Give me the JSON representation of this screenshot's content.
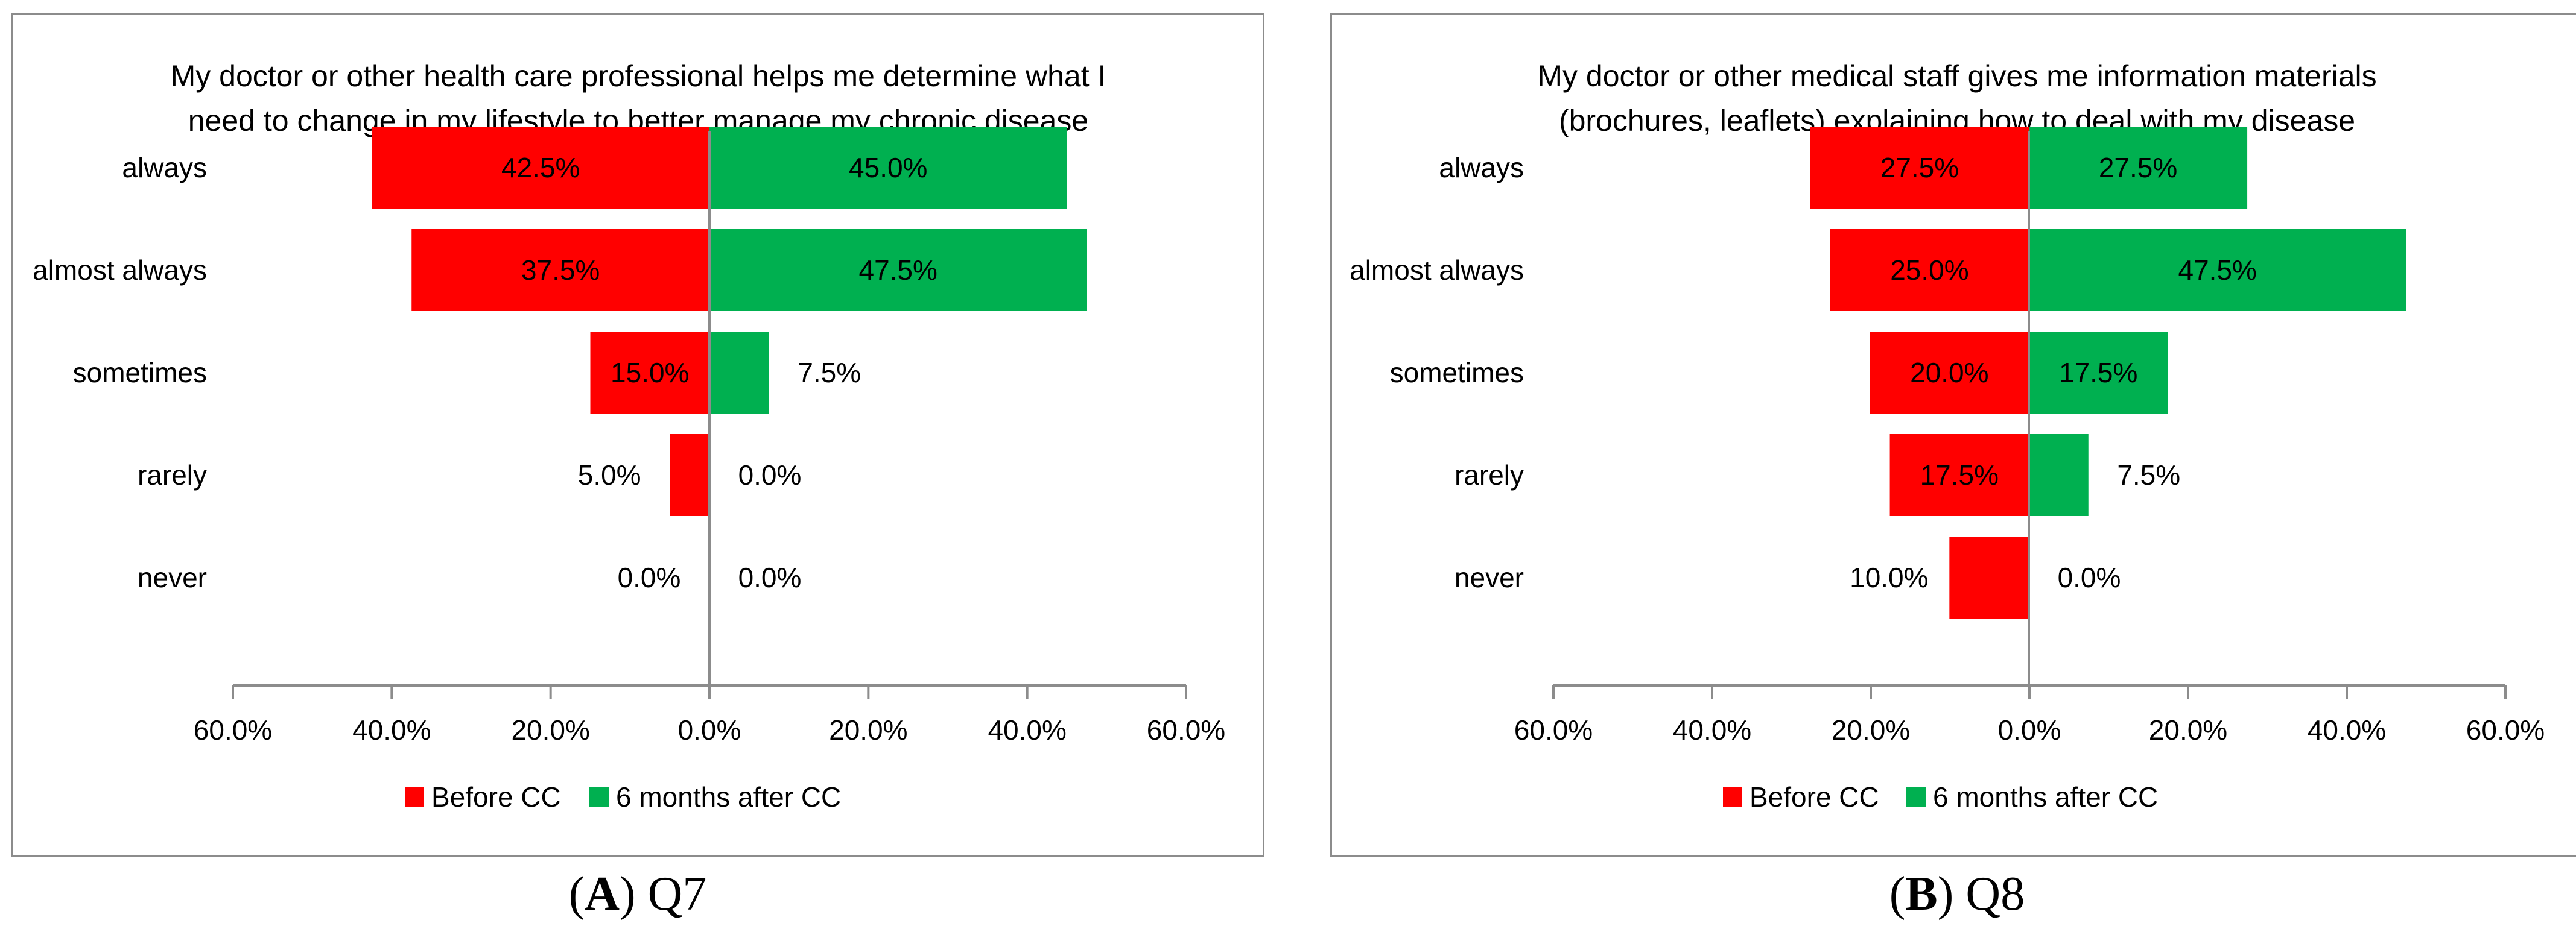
{
  "chart_data": [
    {
      "type": "bar",
      "orientation": "horizontal",
      "layout": "diverging",
      "title_lines": [
        "My doctor or other health care professional helps me determine what I",
        "need to change in my lifestyle to better manage my chronic disease"
      ],
      "categories": [
        "always",
        "almost always",
        "sometimes",
        "rarely",
        "never"
      ],
      "series": [
        {
          "name": "Before CC",
          "values": [
            42.5,
            37.5,
            15.0,
            5.0,
            0.0
          ],
          "color": "#ff0000",
          "side": "left"
        },
        {
          "name": "6 months after CC",
          "values": [
            45.0,
            47.5,
            7.5,
            0.0,
            0.0
          ],
          "color": "#00b050",
          "side": "right"
        }
      ],
      "xlim": [
        -60,
        60
      ],
      "xticks": [
        "60.0%",
        "40.0%",
        "20.0%",
        "0.0%",
        "20.0%",
        "40.0%",
        "60.0%"
      ],
      "legend_position": "bottom",
      "grid": false
    },
    {
      "type": "bar",
      "orientation": "horizontal",
      "layout": "diverging",
      "title_lines": [
        "My doctor or other medical staff gives me information materials",
        "(brochures, leaflets) explaining how to deal with my disease"
      ],
      "categories": [
        "always",
        "almost always",
        "sometimes",
        "rarely",
        "never"
      ],
      "series": [
        {
          "name": "Before CC",
          "values": [
            27.5,
            25.0,
            20.0,
            17.5,
            10.0
          ],
          "color": "#ff0000",
          "side": "left"
        },
        {
          "name": "6 months after CC",
          "values": [
            27.5,
            47.5,
            17.5,
            7.5,
            0.0
          ],
          "color": "#00b050",
          "side": "right"
        }
      ],
      "xlim": [
        -60,
        60
      ],
      "xticks": [
        "60.0%",
        "40.0%",
        "20.0%",
        "0.0%",
        "20.0%",
        "40.0%",
        "60.0%"
      ],
      "legend_position": "bottom",
      "grid": false
    }
  ],
  "captions": [
    {
      "letter": "A",
      "rest": ") Q7"
    },
    {
      "letter": "B",
      "rest": ") Q8"
    }
  ]
}
